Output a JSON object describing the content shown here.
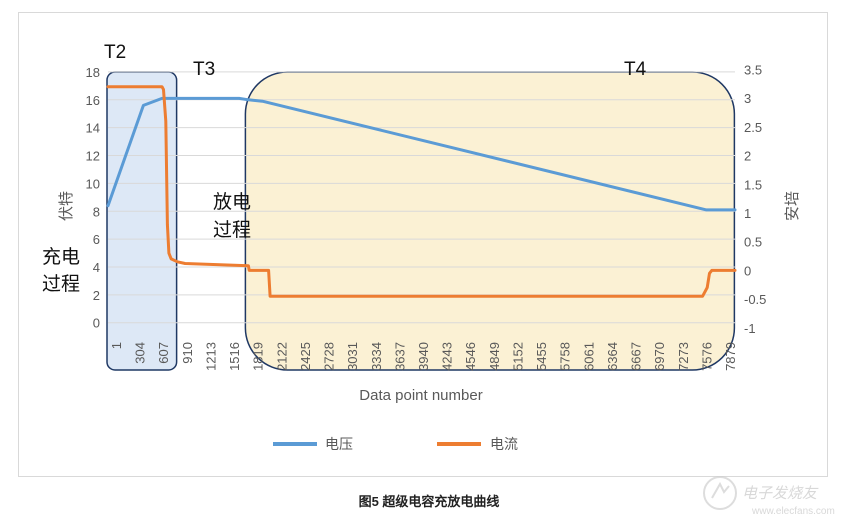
{
  "chart_data": {
    "type": "line",
    "xlabel": "Data point number",
    "ylabel_left": "伏特",
    "ylabel_right": "安培",
    "x_ticks": [
      "1",
      "304",
      "607",
      "910",
      "1213",
      "1516",
      "1819",
      "2122",
      "2425",
      "2728",
      "3031",
      "3334",
      "3637",
      "3940",
      "4243",
      "4546",
      "4849",
      "5152",
      "5455",
      "5758",
      "6061",
      "6364",
      "6667",
      "6970",
      "7273",
      "7576",
      "7879"
    ],
    "x_range": [
      1,
      8120
    ],
    "y_left_ticks": [
      0,
      2,
      4,
      6,
      8,
      10,
      12,
      14,
      16,
      18
    ],
    "y_left_range": [
      -1.6,
      19
    ],
    "y_right_ticks": [
      "-1",
      "-0.5",
      "0",
      "0.5",
      "1",
      "1.5",
      "2",
      "2.5",
      "3",
      "3.5"
    ],
    "y_right_range": [
      -1.3,
      3.7
    ],
    "series": [
      {
        "name": "电压",
        "color": "#5b9bd5",
        "axis": "left",
        "points": [
          [
            1,
            8.4
          ],
          [
            230,
            12.0
          ],
          [
            460,
            15.6
          ],
          [
            700,
            16.1
          ],
          [
            720,
            16.1
          ],
          [
            1700,
            16.1
          ],
          [
            1819,
            16.0
          ],
          [
            2000,
            15.9
          ],
          [
            7750,
            8.1
          ],
          [
            8120,
            8.1
          ]
        ]
      },
      {
        "name": "电流",
        "color": "#ed7d31",
        "axis": "right",
        "points": [
          [
            1,
            3.2
          ],
          [
            700,
            3.2
          ],
          [
            720,
            3.15
          ],
          [
            750,
            2.6
          ],
          [
            770,
            0.8
          ],
          [
            790,
            0.3
          ],
          [
            820,
            0.2
          ],
          [
            900,
            0.15
          ],
          [
            1000,
            0.12
          ],
          [
            1819,
            0.08
          ],
          [
            1830,
            0.0
          ],
          [
            2080,
            0.0
          ],
          [
            2100,
            -0.45
          ],
          [
            7700,
            -0.45
          ],
          [
            7760,
            -0.3
          ],
          [
            7790,
            -0.05
          ],
          [
            7820,
            0.0
          ],
          [
            8120,
            0.0
          ]
        ]
      }
    ],
    "annotations": {
      "t2": "T2",
      "t3": "T3",
      "t4": "T4",
      "charge_line1": "充电",
      "charge_line2": "过程",
      "discharge_line1": "放电",
      "discharge_line2": "过程"
    },
    "highlight_regions": [
      {
        "label": "T2",
        "x_from": 1,
        "x_to": 760,
        "color": "#dde8f6"
      },
      {
        "label": "T4",
        "x_from": 1819,
        "x_to": 7879,
        "color": "#fbf1d4"
      }
    ],
    "legend_position": "bottom-center",
    "grid": "horizontal"
  },
  "caption": "图5  超级电容充放电曲线",
  "watermark": {
    "line1": "电子发烧友",
    "line2": "www.elecfans.com"
  }
}
